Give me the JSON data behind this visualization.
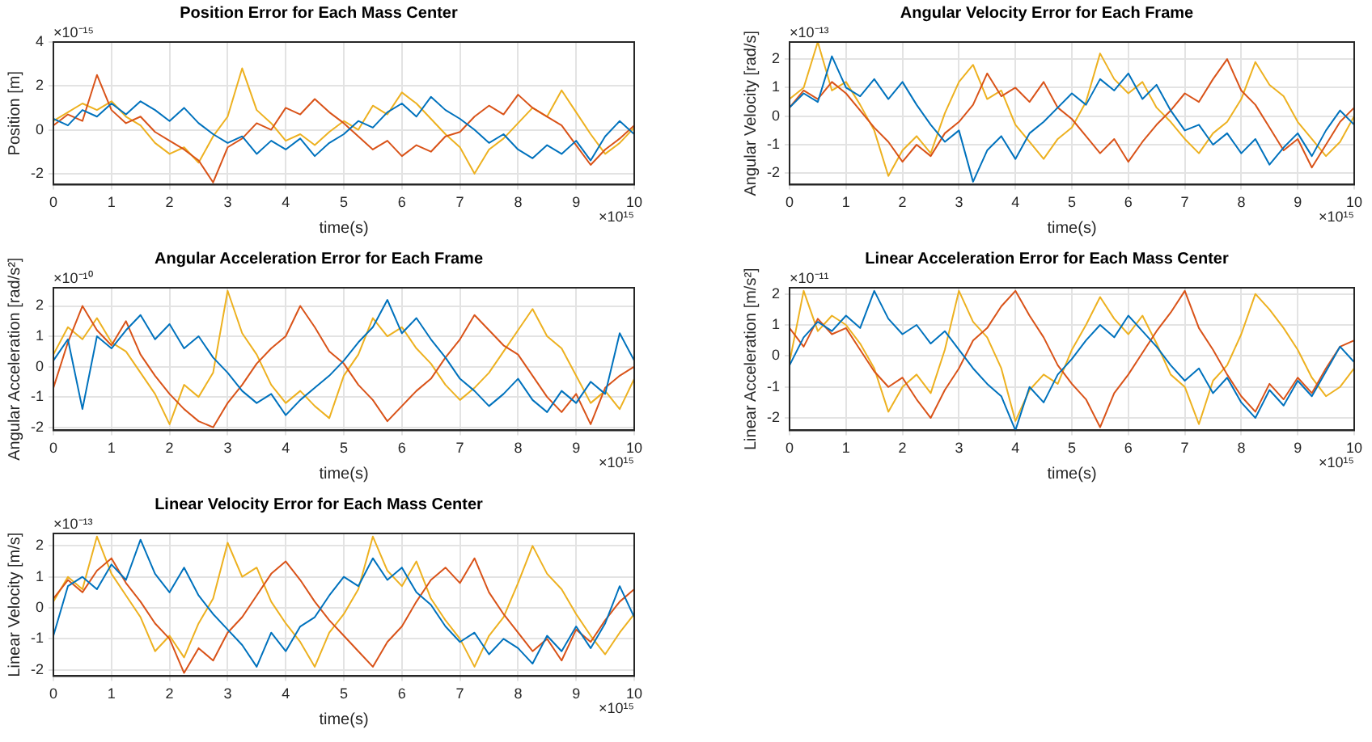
{
  "chart_data": [
    {
      "type": "line",
      "title": "Position Error for Each Mass Center",
      "xlabel": "time(s)",
      "ylabel": "Position [m]",
      "annotations": [
        "×10⁻¹⁵",
        "×10¹⁵"
      ],
      "grid": true,
      "xlim": [
        0,
        10
      ],
      "xticks": [
        0,
        1,
        2,
        3,
        4,
        5,
        6,
        7,
        8,
        9,
        10
      ],
      "ylim": [
        -2.5,
        4
      ],
      "yticks": [
        -2,
        0,
        2,
        4
      ],
      "x": [
        0,
        0.25,
        0.5,
        0.75,
        1,
        1.25,
        1.5,
        1.75,
        2,
        2.25,
        2.5,
        2.75,
        3,
        3.25,
        3.5,
        3.75,
        4,
        4.25,
        4.5,
        4.75,
        5,
        5.25,
        5.5,
        5.75,
        6,
        6.25,
        6.5,
        6.75,
        7,
        7.25,
        7.5,
        7.75,
        8,
        8.25,
        8.5,
        8.75,
        9,
        9.25,
        9.5,
        9.75,
        10
      ],
      "series": [
        {
          "color": "#0072bd",
          "values": [
            0.5,
            0.2,
            0.9,
            0.6,
            1.2,
            0.7,
            1.3,
            0.9,
            0.4,
            1.0,
            0.3,
            -0.2,
            -0.6,
            -0.3,
            -1.1,
            -0.5,
            -0.9,
            -0.4,
            -1.2,
            -0.6,
            -0.2,
            0.4,
            0.1,
            0.8,
            1.2,
            0.6,
            1.5,
            0.9,
            0.5,
            0.0,
            -0.6,
            -0.2,
            -0.9,
            -1.3,
            -0.7,
            -1.1,
            -0.5,
            -1.4,
            -0.3,
            0.4,
            -0.2
          ]
        },
        {
          "color": "#d95319",
          "values": [
            0.2,
            0.7,
            0.4,
            2.5,
            0.9,
            0.3,
            0.6,
            -0.1,
            -0.5,
            -0.9,
            -1.4,
            -2.4,
            -0.8,
            -0.4,
            0.3,
            0.0,
            1.0,
            0.7,
            1.4,
            0.8,
            0.3,
            -0.3,
            -0.9,
            -0.5,
            -1.2,
            -0.7,
            -1.0,
            -0.3,
            -0.1,
            0.6,
            1.1,
            0.7,
            1.6,
            1.0,
            0.6,
            0.2,
            -0.7,
            -1.6,
            -0.9,
            -0.4,
            0.2
          ]
        },
        {
          "color": "#edb120",
          "values": [
            0.4,
            0.8,
            1.2,
            0.9,
            1.3,
            0.6,
            0.2,
            -0.6,
            -1.1,
            -0.8,
            -1.5,
            -0.3,
            0.6,
            2.8,
            0.9,
            0.3,
            -0.5,
            -0.2,
            -0.7,
            -0.1,
            0.4,
            0.0,
            1.1,
            0.7,
            1.7,
            1.2,
            0.5,
            -0.2,
            -0.8,
            -2.0,
            -0.9,
            -0.4,
            0.3,
            1.0,
            0.6,
            1.8,
            0.8,
            -0.2,
            -1.1,
            -0.6,
            0.1
          ]
        }
      ]
    },
    {
      "type": "line",
      "title": "Angular Velocity Error for Each Frame",
      "xlabel": "time(s)",
      "ylabel": "Angular Velocity [rad/s]",
      "annotations": [
        "×10⁻¹³",
        "×10¹⁵"
      ],
      "grid": true,
      "xlim": [
        0,
        10
      ],
      "xticks": [
        0,
        1,
        2,
        3,
        4,
        5,
        6,
        7,
        8,
        9,
        10
      ],
      "ylim": [
        -2.4,
        2.6
      ],
      "yticks": [
        -2,
        -1,
        0,
        1,
        2
      ],
      "x": [
        0,
        0.25,
        0.5,
        0.75,
        1,
        1.25,
        1.5,
        1.75,
        2,
        2.25,
        2.5,
        2.75,
        3,
        3.25,
        3.5,
        3.75,
        4,
        4.25,
        4.5,
        4.75,
        5,
        5.25,
        5.5,
        5.75,
        6,
        6.25,
        6.5,
        6.75,
        7,
        7.25,
        7.5,
        7.75,
        8,
        8.25,
        8.5,
        8.75,
        9,
        9.25,
        9.5,
        9.75,
        10
      ],
      "series": [
        {
          "color": "#0072bd",
          "values": [
            0.3,
            0.8,
            0.5,
            2.1,
            1.0,
            0.7,
            1.3,
            0.6,
            1.2,
            0.4,
            -0.3,
            -0.9,
            -0.5,
            -2.3,
            -1.2,
            -0.7,
            -1.5,
            -0.6,
            -0.2,
            0.3,
            0.8,
            0.4,
            1.3,
            0.9,
            1.5,
            0.6,
            1.1,
            0.2,
            -0.5,
            -0.3,
            -1.0,
            -0.6,
            -1.3,
            -0.8,
            -1.7,
            -1.1,
            -0.6,
            -1.4,
            -0.5,
            0.2,
            -0.3
          ]
        },
        {
          "color": "#d95319",
          "values": [
            0.3,
            0.9,
            0.6,
            1.2,
            0.8,
            0.2,
            -0.4,
            -0.9,
            -1.6,
            -1.0,
            -1.4,
            -0.6,
            -0.2,
            0.4,
            1.5,
            0.7,
            1.0,
            0.5,
            1.2,
            0.3,
            -0.1,
            -0.7,
            -1.3,
            -0.8,
            -1.6,
            -0.9,
            -0.3,
            0.2,
            0.8,
            0.5,
            1.3,
            2.0,
            0.9,
            0.4,
            -0.4,
            -1.2,
            -0.8,
            -1.8,
            -1.0,
            -0.2,
            0.3
          ]
        },
        {
          "color": "#edb120",
          "values": [
            0.6,
            1.0,
            2.6,
            0.9,
            1.2,
            0.4,
            -0.5,
            -2.1,
            -1.2,
            -0.7,
            -1.3,
            0.1,
            1.2,
            1.8,
            0.6,
            0.9,
            -0.3,
            -0.9,
            -1.5,
            -0.8,
            -0.4,
            0.5,
            2.2,
            1.3,
            0.8,
            1.2,
            0.3,
            -0.2,
            -0.8,
            -1.3,
            -0.6,
            -0.2,
            0.6,
            1.9,
            1.1,
            0.7,
            -0.2,
            -0.8,
            -1.4,
            -0.9,
            0.0
          ]
        }
      ]
    },
    {
      "type": "line",
      "title": "Angular Acceleration Error for Each Frame",
      "xlabel": "time(s)",
      "ylabel": "Angular Acceleration [rad/s²]",
      "annotations": [
        "×10⁻¹⁰",
        "×10¹⁵"
      ],
      "grid": true,
      "xlim": [
        0,
        10
      ],
      "xticks": [
        0,
        1,
        2,
        3,
        4,
        5,
        6,
        7,
        8,
        9,
        10
      ],
      "ylim": [
        -2.1,
        2.6
      ],
      "yticks": [
        -2,
        -1,
        0,
        1,
        2
      ],
      "x": [
        0,
        0.25,
        0.5,
        0.75,
        1,
        1.25,
        1.5,
        1.75,
        2,
        2.25,
        2.5,
        2.75,
        3,
        3.25,
        3.5,
        3.75,
        4,
        4.25,
        4.5,
        4.75,
        5,
        5.25,
        5.5,
        5.75,
        6,
        6.25,
        6.5,
        6.75,
        7,
        7.25,
        7.5,
        7.75,
        8,
        8.25,
        8.5,
        8.75,
        9,
        9.25,
        9.5,
        9.75,
        10
      ],
      "series": [
        {
          "color": "#0072bd",
          "values": [
            0.2,
            0.9,
            -1.4,
            1.0,
            0.6,
            1.2,
            1.7,
            0.9,
            1.4,
            0.6,
            1.0,
            0.3,
            -0.2,
            -0.8,
            -1.2,
            -0.9,
            -1.6,
            -1.1,
            -0.7,
            -0.3,
            0.2,
            0.8,
            1.3,
            2.2,
            1.1,
            1.6,
            0.9,
            0.3,
            -0.4,
            -0.8,
            -1.3,
            -0.9,
            -0.4,
            -1.1,
            -1.5,
            -0.8,
            -1.2,
            -0.5,
            -0.9,
            1.1,
            0.2
          ]
        },
        {
          "color": "#d95319",
          "values": [
            -0.7,
            0.8,
            2.0,
            1.2,
            0.7,
            1.5,
            0.4,
            -0.3,
            -0.9,
            -1.4,
            -1.8,
            -2.0,
            -1.2,
            -0.6,
            0.1,
            0.6,
            1.0,
            2.0,
            1.3,
            0.5,
            0.1,
            -0.6,
            -1.1,
            -1.8,
            -1.3,
            -0.8,
            -0.4,
            0.3,
            0.9,
            1.7,
            1.2,
            0.7,
            0.4,
            -0.3,
            -1.0,
            -1.5,
            -0.9,
            -1.9,
            -0.7,
            -0.3,
            0.0
          ]
        },
        {
          "color": "#edb120",
          "values": [
            0.4,
            1.3,
            0.9,
            1.6,
            0.8,
            0.5,
            -0.2,
            -0.9,
            -1.9,
            -0.6,
            -1.0,
            -0.2,
            2.5,
            1.1,
            0.4,
            -0.6,
            -1.2,
            -0.8,
            -1.3,
            -1.7,
            -0.3,
            0.4,
            1.6,
            1.0,
            1.3,
            0.6,
            0.1,
            -0.6,
            -1.1,
            -0.7,
            -0.2,
            0.5,
            1.2,
            1.9,
            1.0,
            0.6,
            -0.3,
            -1.2,
            -0.8,
            -1.4,
            -0.4
          ]
        }
      ]
    },
    {
      "type": "line",
      "title": "Linear Acceleration Error for Each Mass Center",
      "xlabel": "time(s)",
      "ylabel": "Linear Acceleration [m/s²]",
      "annotations": [
        "×10⁻¹¹",
        "×10¹⁵"
      ],
      "grid": true,
      "xlim": [
        0,
        10
      ],
      "xticks": [
        0,
        1,
        2,
        3,
        4,
        5,
        6,
        7,
        8,
        9,
        10
      ],
      "ylim": [
        -2.4,
        2.2
      ],
      "yticks": [
        -2,
        -1,
        0,
        1,
        2
      ],
      "x": [
        0,
        0.25,
        0.5,
        0.75,
        1,
        1.25,
        1.5,
        1.75,
        2,
        2.25,
        2.5,
        2.75,
        3,
        3.25,
        3.5,
        3.75,
        4,
        4.25,
        4.5,
        4.75,
        5,
        5.25,
        5.5,
        5.75,
        6,
        6.25,
        6.5,
        6.75,
        7,
        7.25,
        7.5,
        7.75,
        8,
        8.25,
        8.5,
        8.75,
        9,
        9.25,
        9.5,
        9.75,
        10
      ],
      "series": [
        {
          "color": "#0072bd",
          "values": [
            -0.3,
            0.6,
            1.1,
            0.8,
            1.3,
            0.9,
            2.1,
            1.2,
            0.7,
            1.0,
            0.4,
            0.8,
            0.2,
            -0.4,
            -0.9,
            -1.3,
            -2.4,
            -1.0,
            -1.5,
            -0.6,
            -0.1,
            0.5,
            1.0,
            0.6,
            1.3,
            0.8,
            0.3,
            -0.3,
            -0.8,
            -0.4,
            -1.2,
            -0.7,
            -1.5,
            -2.0,
            -1.1,
            -1.6,
            -0.8,
            -1.3,
            -0.5,
            0.3,
            -0.2
          ]
        },
        {
          "color": "#d95319",
          "values": [
            0.9,
            0.3,
            1.2,
            0.7,
            0.9,
            0.2,
            -0.5,
            -1.0,
            -0.7,
            -1.4,
            -2.0,
            -1.1,
            -0.4,
            0.5,
            0.9,
            1.6,
            2.1,
            1.3,
            0.6,
            -0.3,
            -0.9,
            -1.4,
            -2.3,
            -1.2,
            -0.6,
            0.1,
            0.8,
            1.4,
            2.1,
            0.9,
            0.2,
            -0.6,
            -1.3,
            -1.8,
            -0.9,
            -1.4,
            -0.7,
            -1.2,
            -0.4,
            0.3,
            0.5
          ]
        },
        {
          "color": "#edb120",
          "values": [
            -0.2,
            2.1,
            0.8,
            1.3,
            1.0,
            0.4,
            -0.4,
            -1.8,
            -1.0,
            -0.6,
            -1.2,
            0.2,
            2.1,
            1.1,
            0.6,
            -0.4,
            -2.1,
            -1.1,
            -0.6,
            -0.9,
            0.2,
            1.0,
            1.9,
            1.2,
            0.7,
            1.3,
            0.4,
            -0.6,
            -1.0,
            -2.2,
            -0.8,
            -0.3,
            0.7,
            2.0,
            1.5,
            0.9,
            0.2,
            -0.7,
            -1.3,
            -1.0,
            -0.4
          ]
        }
      ]
    },
    {
      "type": "line",
      "title": "Linear Velocity Error for Each Mass Center",
      "xlabel": "time(s)",
      "ylabel": "Linear Velocity [m/s]",
      "annotations": [
        "×10⁻¹³",
        "×10¹⁵"
      ],
      "grid": true,
      "xlim": [
        0,
        10
      ],
      "xticks": [
        0,
        1,
        2,
        3,
        4,
        5,
        6,
        7,
        8,
        9,
        10
      ],
      "ylim": [
        -2.2,
        2.4
      ],
      "yticks": [
        -2,
        -1,
        0,
        1,
        2
      ],
      "x": [
        0,
        0.25,
        0.5,
        0.75,
        1,
        1.25,
        1.5,
        1.75,
        2,
        2.25,
        2.5,
        2.75,
        3,
        3.25,
        3.5,
        3.75,
        4,
        4.25,
        4.5,
        4.75,
        5,
        5.25,
        5.5,
        5.75,
        6,
        6.25,
        6.5,
        6.75,
        7,
        7.25,
        7.5,
        7.75,
        8,
        8.25,
        8.5,
        8.75,
        9,
        9.25,
        9.5,
        9.75,
        10
      ],
      "series": [
        {
          "color": "#0072bd",
          "values": [
            -0.9,
            0.7,
            1.0,
            0.6,
            1.4,
            0.9,
            2.2,
            1.1,
            0.5,
            1.3,
            0.4,
            -0.2,
            -0.7,
            -1.2,
            -1.9,
            -0.8,
            -1.4,
            -0.6,
            -0.3,
            0.4,
            1.0,
            0.7,
            1.6,
            0.9,
            1.3,
            0.5,
            0.1,
            -0.6,
            -1.1,
            -0.8,
            -1.5,
            -1.0,
            -1.3,
            -1.8,
            -0.9,
            -1.4,
            -0.6,
            -1.3,
            -0.5,
            0.7,
            -0.3
          ]
        },
        {
          "color": "#d95319",
          "values": [
            0.3,
            0.9,
            0.5,
            1.2,
            1.6,
            0.8,
            0.2,
            -0.5,
            -1.0,
            -2.1,
            -1.3,
            -1.7,
            -0.8,
            -0.3,
            0.4,
            1.1,
            1.5,
            0.9,
            0.2,
            -0.4,
            -0.9,
            -1.4,
            -1.9,
            -1.1,
            -0.6,
            0.2,
            0.9,
            1.3,
            0.8,
            1.6,
            0.5,
            -0.2,
            -0.8,
            -1.4,
            -1.0,
            -1.7,
            -0.7,
            -1.1,
            -0.4,
            0.2,
            0.6
          ]
        },
        {
          "color": "#edb120",
          "values": [
            0.2,
            1.0,
            0.6,
            2.3,
            1.1,
            0.4,
            -0.3,
            -1.4,
            -0.9,
            -1.6,
            -0.5,
            0.3,
            2.1,
            1.0,
            1.3,
            0.2,
            -0.5,
            -1.1,
            -1.9,
            -0.8,
            -0.2,
            0.6,
            2.3,
            1.2,
            0.7,
            1.5,
            0.3,
            -0.4,
            -1.0,
            -1.9,
            -0.9,
            -0.3,
            0.8,
            2.0,
            1.1,
            0.6,
            -0.2,
            -0.9,
            -1.5,
            -0.8,
            -0.2
          ]
        }
      ]
    }
  ]
}
